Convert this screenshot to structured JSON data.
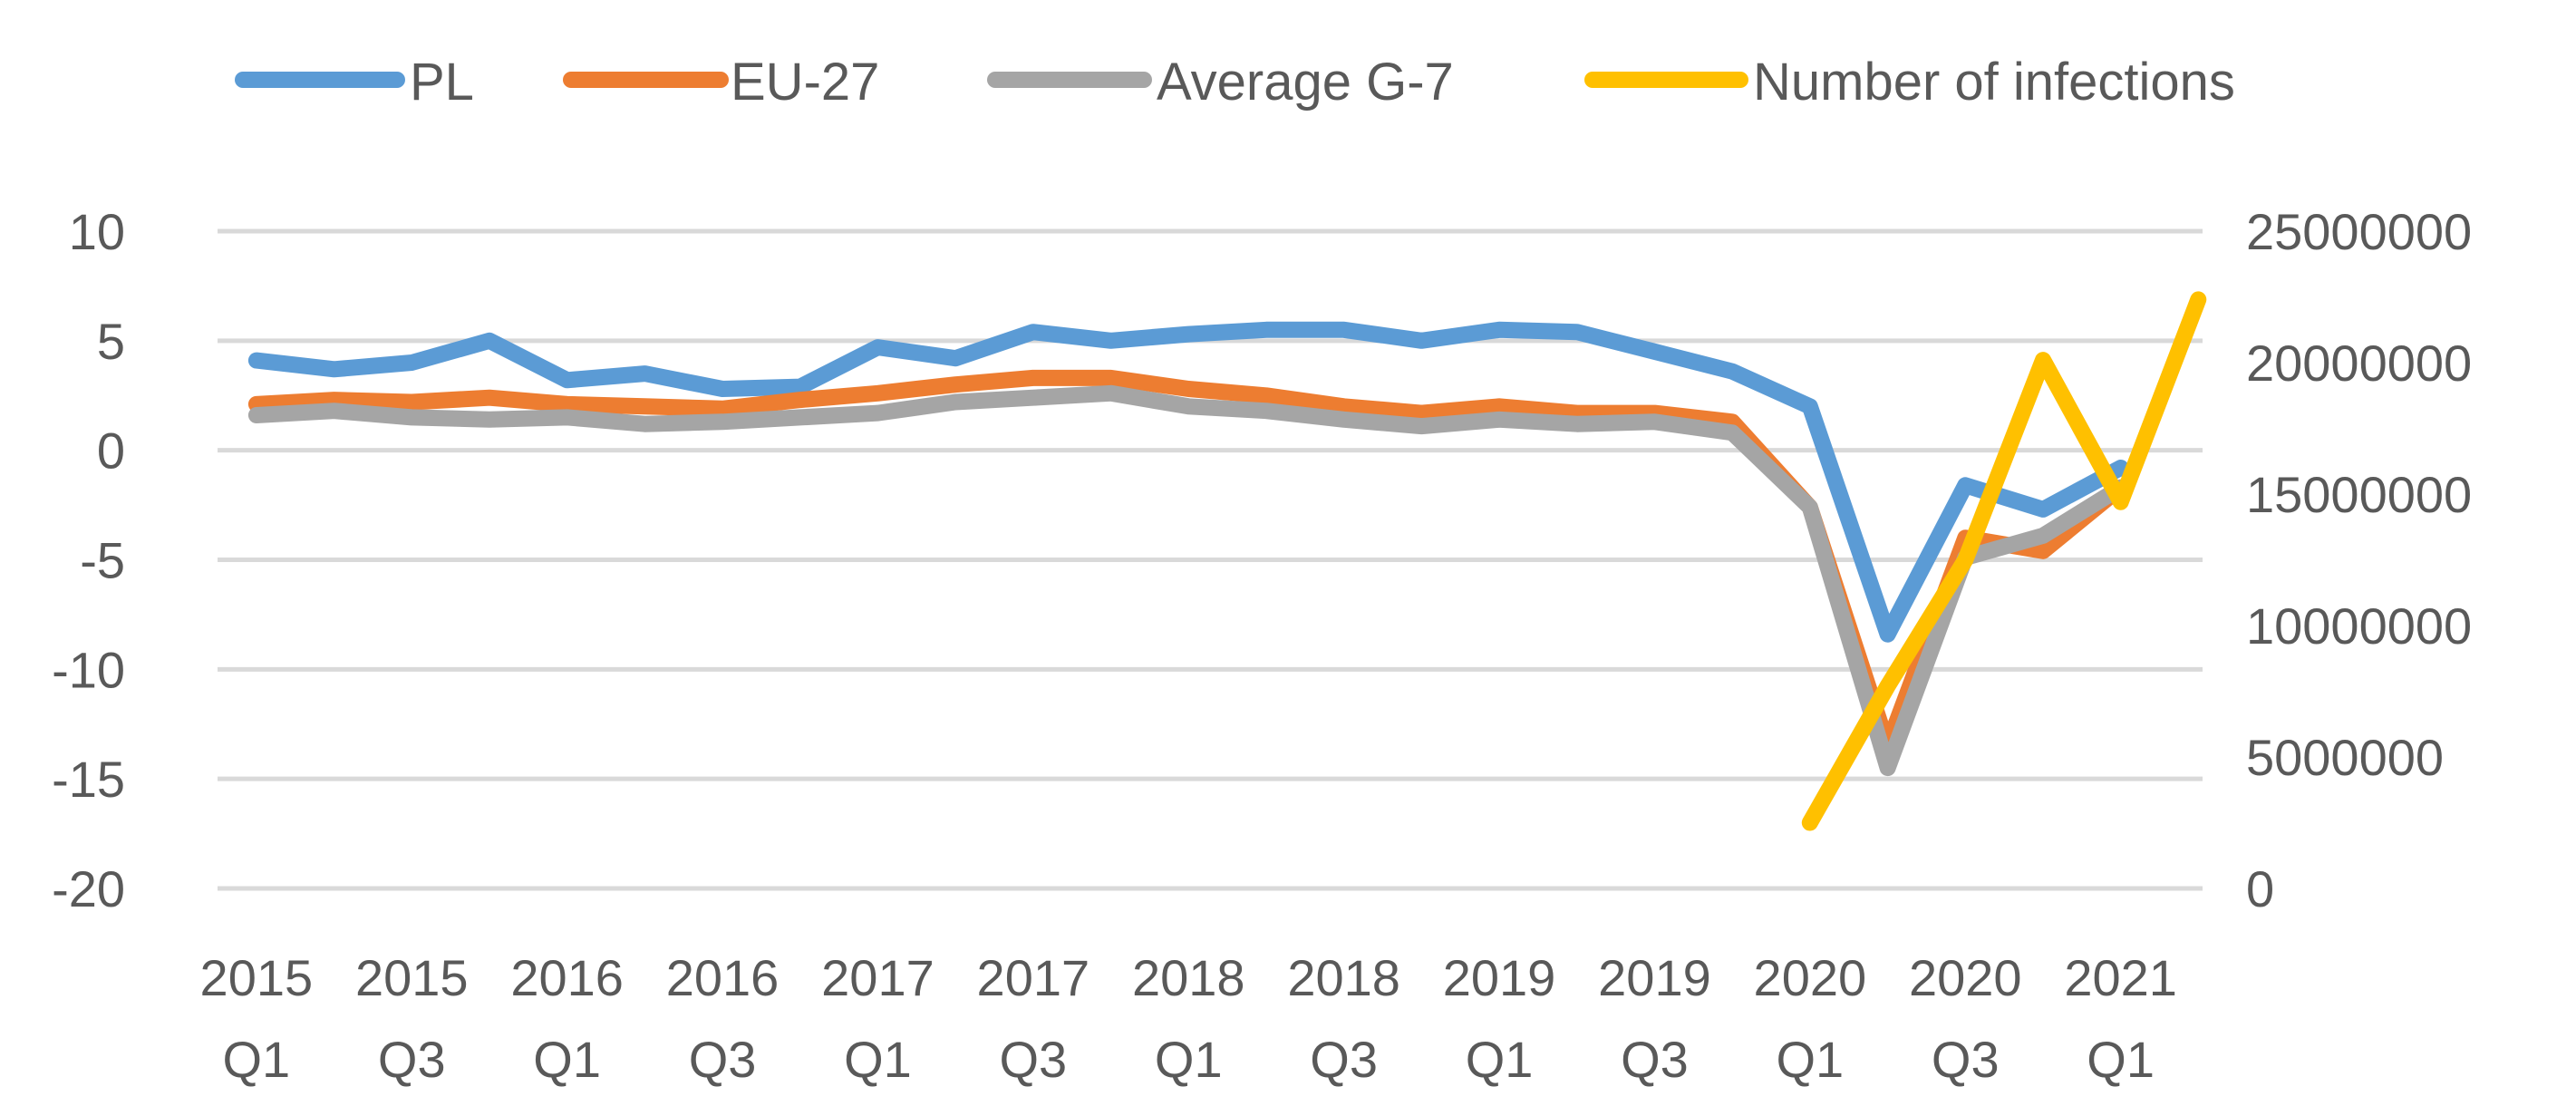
{
  "chart_data": {
    "type": "line",
    "title": "",
    "xlabel": "",
    "ylabel": "",
    "legend_position": "top",
    "categories": [
      "2015 Q1",
      "2015 Q2",
      "2015 Q3",
      "2015 Q4",
      "2016 Q1",
      "2016 Q2",
      "2016 Q3",
      "2016 Q4",
      "2017 Q1",
      "2017 Q2",
      "2017 Q3",
      "2017 Q4",
      "2018 Q1",
      "2018 Q2",
      "2018 Q3",
      "2018 Q4",
      "2019 Q1",
      "2019 Q2",
      "2019 Q3",
      "2019 Q4",
      "2020 Q1",
      "2020 Q2",
      "2020 Q3",
      "2020 Q4",
      "2021 Q1",
      "2021 Q2"
    ],
    "x_tick_labels": [
      {
        "year": "2015",
        "quarter": "Q1"
      },
      {
        "year": "2015",
        "quarter": "Q3"
      },
      {
        "year": "2016",
        "quarter": "Q1"
      },
      {
        "year": "2016",
        "quarter": "Q3"
      },
      {
        "year": "2017",
        "quarter": "Q1"
      },
      {
        "year": "2017",
        "quarter": "Q3"
      },
      {
        "year": "2018",
        "quarter": "Q1"
      },
      {
        "year": "2018",
        "quarter": "Q3"
      },
      {
        "year": "2019",
        "quarter": "Q1"
      },
      {
        "year": "2019",
        "quarter": "Q3"
      },
      {
        "year": "2020",
        "quarter": "Q1"
      },
      {
        "year": "2020",
        "quarter": "Q3"
      },
      {
        "year": "2021",
        "quarter": "Q1"
      }
    ],
    "y_left": {
      "ylim": [
        -20,
        10
      ],
      "ticks": [
        "10",
        "5",
        "0",
        "-5",
        "-10",
        "-15",
        "-20"
      ]
    },
    "y_right": {
      "ylim": [
        0,
        25000000
      ],
      "ticks": [
        "25000000",
        "20000000",
        "15000000",
        "10000000",
        "5000000",
        "0"
      ]
    },
    "grid": true,
    "series": [
      {
        "name": "PL",
        "color": "#5b9bd5",
        "axis": "left",
        "values": [
          4.1,
          3.7,
          4.0,
          5.0,
          3.2,
          3.5,
          2.8,
          2.9,
          4.7,
          4.2,
          5.4,
          5.0,
          5.3,
          5.5,
          5.5,
          5.0,
          5.5,
          5.4,
          4.5,
          3.6,
          2.0,
          -8.4,
          -1.6,
          -2.7,
          -0.8,
          null
        ]
      },
      {
        "name": "EU-27",
        "color": "#ed7d31",
        "axis": "left",
        "values": [
          2.1,
          2.3,
          2.2,
          2.4,
          2.1,
          2.0,
          1.9,
          2.3,
          2.6,
          3.0,
          3.3,
          3.3,
          2.8,
          2.5,
          2.0,
          1.7,
          2.0,
          1.7,
          1.7,
          1.3,
          -2.6,
          -13.5,
          -4.0,
          -4.6,
          -1.7,
          null
        ]
      },
      {
        "name": "Average G-7",
        "color": "#a5a5a5",
        "axis": "left",
        "values": [
          1.6,
          1.8,
          1.5,
          1.4,
          1.5,
          1.2,
          1.3,
          1.5,
          1.7,
          2.2,
          2.4,
          2.6,
          2.0,
          1.8,
          1.4,
          1.1,
          1.4,
          1.2,
          1.3,
          0.8,
          -2.6,
          -14.5,
          -4.9,
          -3.9,
          -1.7,
          null
        ]
      },
      {
        "name": "Number of infections",
        "color": "#ffc000",
        "axis": "right",
        "values": [
          null,
          null,
          null,
          null,
          null,
          null,
          null,
          null,
          null,
          null,
          null,
          null,
          null,
          null,
          null,
          null,
          null,
          null,
          null,
          null,
          2500000,
          7700000,
          12500000,
          20100000,
          14700000,
          22400000
        ]
      }
    ]
  }
}
